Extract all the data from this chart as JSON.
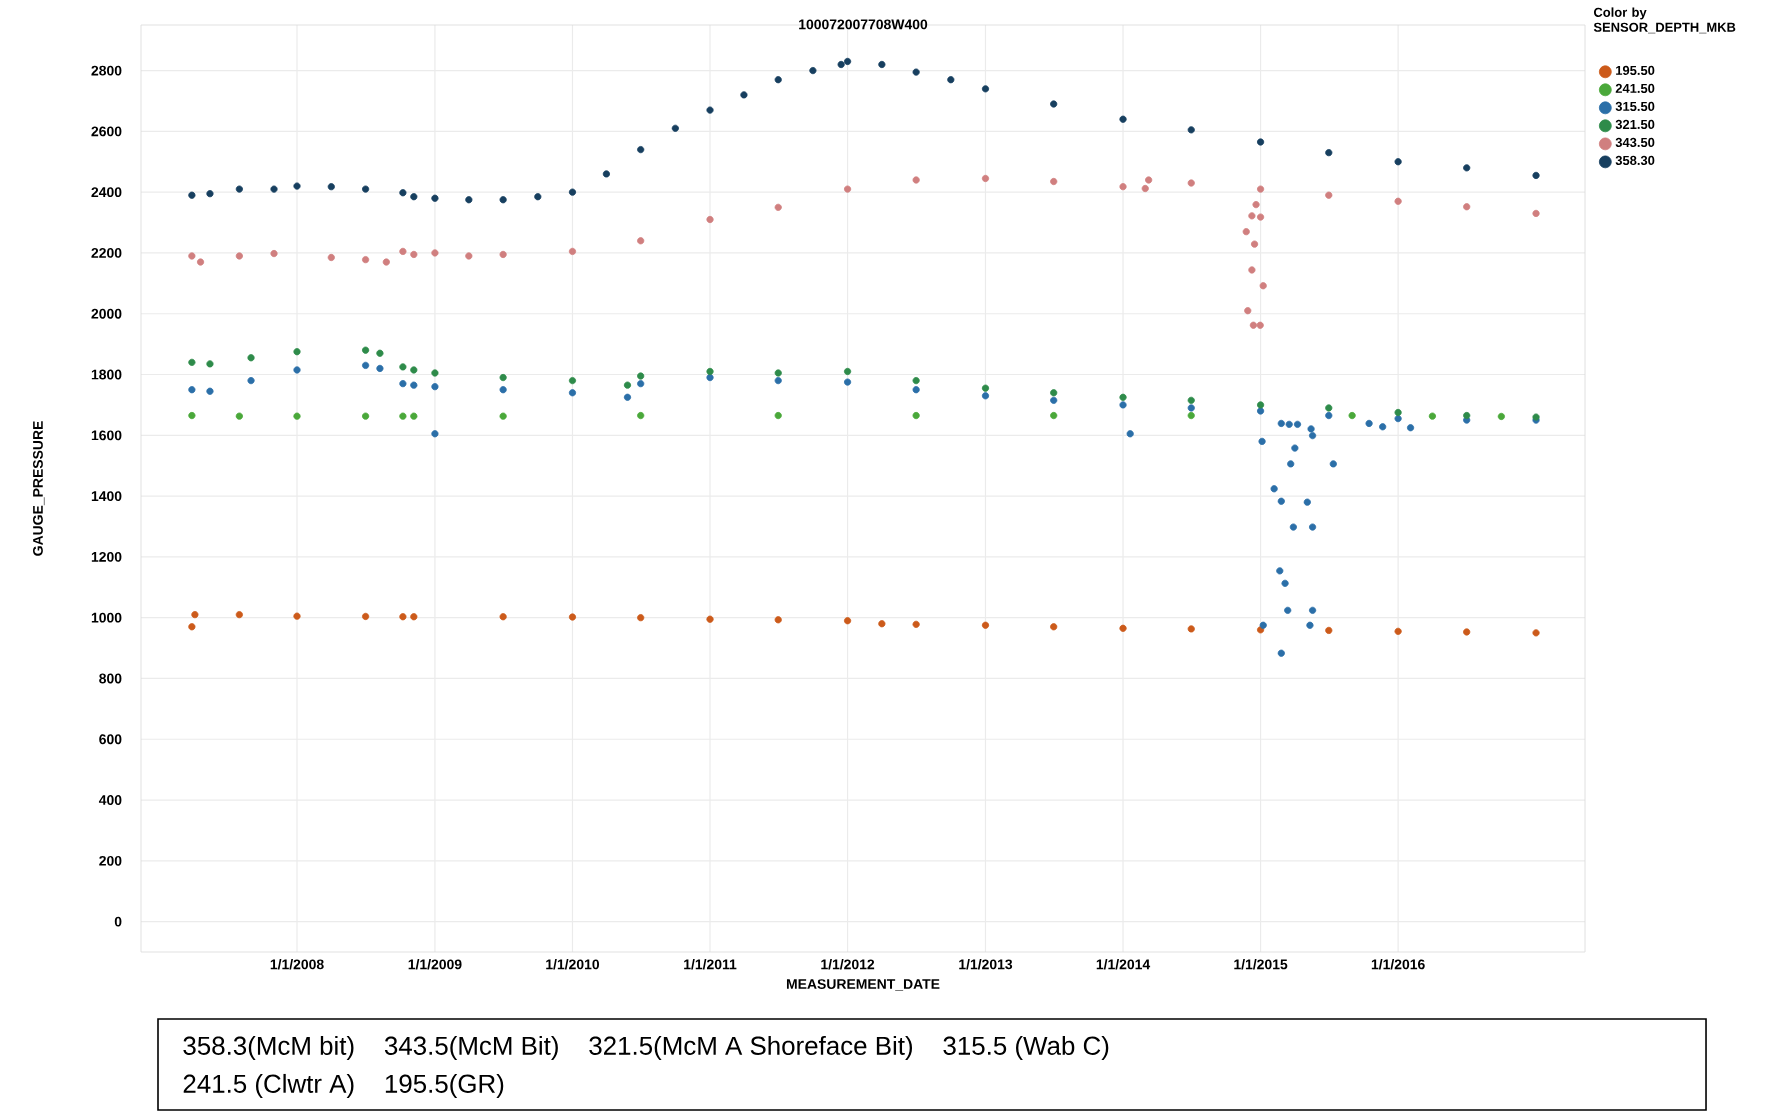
{
  "chart_data": {
    "type": "scatter",
    "title": "100072007708W400",
    "xlabel": "MEASUREMENT_DATE",
    "ylabel": "GAUGE_PRESSURE",
    "legend_title": "Color by SENSOR_DEPTH_MKB",
    "legend": "right",
    "grid": true,
    "xlim": [
      "2006-11-13",
      "2017-05-11"
    ],
    "ylim": [
      -100,
      2950
    ],
    "xticks": [
      {
        "value": "2008-01-01",
        "label": "1/1/2008"
      },
      {
        "value": "2009-01-01",
        "label": "1/1/2009"
      },
      {
        "value": "2010-01-01",
        "label": "1/1/2010"
      },
      {
        "value": "2011-01-01",
        "label": "1/1/2011"
      },
      {
        "value": "2012-01-01",
        "label": "1/1/2012"
      },
      {
        "value": "2013-01-01",
        "label": "1/1/2013"
      },
      {
        "value": "2014-01-01",
        "label": "1/1/2014"
      },
      {
        "value": "2015-01-01",
        "label": "1/1/2015"
      },
      {
        "value": "2016-01-01",
        "label": "1/1/2016"
      }
    ],
    "yticks": [
      0,
      200,
      400,
      600,
      800,
      1000,
      1200,
      1400,
      1600,
      1800,
      2000,
      2200,
      2400,
      2600,
      2800
    ],
    "annotations": [
      "358.3(McM bit)",
      "343.5(McM Bit)",
      "321.5(McM A Shoreface Bit)",
      "315.5 (Wab C)",
      "241.5 (Clwtr A)",
      "195.5(GR)"
    ],
    "series": [
      {
        "name": "195.50",
        "color": "#cc5a1a",
        "x": [
          "2007-03-28",
          "2007-04-05",
          "2007-08-01",
          "2008-01-01",
          "2008-07-01",
          "2008-10-08",
          "2008-11-06",
          "2009-07-01",
          "2010-01-01",
          "2010-07-01",
          "2011-01-01",
          "2011-07-01",
          "2012-01-01",
          "2012-04-01",
          "2012-07-01",
          "2013-01-01",
          "2013-07-01",
          "2014-01-01",
          "2014-07-01",
          "2015-01-01",
          "2015-07-01",
          "2016-01-01",
          "2016-07-01",
          "2017-01-01"
        ],
        "values": [
          970,
          1010,
          1010,
          1005,
          1004,
          1003,
          1003,
          1003,
          1002,
          1000,
          995,
          993,
          990,
          980,
          978,
          975,
          970,
          965,
          963,
          960,
          958,
          955,
          953,
          950
        ]
      },
      {
        "name": "241.50",
        "color": "#4aa83a",
        "x": [
          "2007-03-28",
          "2007-08-01",
          "2008-01-01",
          "2008-07-01",
          "2008-10-08",
          "2008-11-06",
          "2009-07-01",
          "2010-07-01",
          "2011-07-01",
          "2012-07-01",
          "2013-07-01",
          "2014-07-01",
          "2015-09-01",
          "2016-04-01",
          "2016-10-01"
        ],
        "values": [
          1665,
          1663,
          1663,
          1663,
          1663,
          1663,
          1663,
          1665,
          1665,
          1665,
          1665,
          1665,
          1665,
          1663,
          1662
        ]
      },
      {
        "name": "315.50",
        "color": "#2b6fa8",
        "x": [
          "2007-03-28",
          "2007-05-15",
          "2007-09-01",
          "2008-01-01",
          "2008-07-01",
          "2008-08-08",
          "2008-10-08",
          "2008-11-06",
          "2009-01-01",
          "2009-07-01",
          "2010-01-01",
          "2010-05-27",
          "2010-07-01",
          "2011-01-01",
          "2011-07-01",
          "2012-01-01",
          "2012-07-01",
          "2013-01-01",
          "2013-07-01",
          "2014-01-01",
          "2014-07-01",
          "2015-01-01",
          "2015-07-01",
          "2016-01-01",
          "2016-07-01",
          "2017-01-01",
          "2009-01-01",
          "2014-01-20",
          "2015-01-05",
          "2015-02-25",
          "2015-03-18",
          "2015-04-09",
          "2015-05-15",
          "2015-05-19",
          "2015-04-02",
          "2015-03-22",
          "2015-07-13",
          "2015-02-06",
          "2015-02-25",
          "2015-05-05",
          "2015-03-29",
          "2015-05-19",
          "2015-02-21",
          "2015-03-07",
          "2015-03-14",
          "2015-05-19",
          "2015-01-08",
          "2015-05-12",
          "2015-02-25",
          "2015-10-16",
          "2015-11-21",
          "2016-02-03"
        ],
        "values": [
          1750,
          1745,
          1780,
          1815,
          1830,
          1820,
          1770,
          1765,
          1760,
          1750,
          1740,
          1725,
          1770,
          1790,
          1780,
          1775,
          1750,
          1730,
          1715,
          1700,
          1690,
          1680,
          1665,
          1655,
          1650,
          1650,
          1605,
          1605,
          1580,
          1639,
          1636,
          1636,
          1621,
          1599,
          1558,
          1506,
          1506,
          1424,
          1383,
          1380,
          1298,
          1298,
          1154,
          1113,
          1024,
          1024,
          975,
          975,
          883,
          1639,
          1628,
          1625
        ]
      },
      {
        "name": "321.50",
        "color": "#2e8b4a",
        "x": [
          "2007-03-28",
          "2007-05-15",
          "2007-09-01",
          "2008-01-01",
          "2008-07-01",
          "2008-08-08",
          "2008-10-08",
          "2008-11-06",
          "2009-01-01",
          "2009-07-01",
          "2010-01-01",
          "2010-05-27",
          "2010-07-01",
          "2011-01-01",
          "2011-07-01",
          "2012-01-01",
          "2012-07-01",
          "2013-01-01",
          "2013-07-01",
          "2014-01-01",
          "2014-07-01",
          "2015-01-01",
          "2015-07-01",
          "2016-01-01",
          "2016-07-01",
          "2017-01-01"
        ],
        "values": [
          1840,
          1835,
          1855,
          1875,
          1880,
          1870,
          1825,
          1815,
          1805,
          1790,
          1780,
          1765,
          1795,
          1810,
          1805,
          1810,
          1780,
          1755,
          1740,
          1725,
          1715,
          1700,
          1690,
          1675,
          1665,
          1660
        ]
      },
      {
        "name": "343.50",
        "color": "#d07f7f",
        "x": [
          "2007-03-28",
          "2007-04-20",
          "2007-08-01",
          "2007-11-01",
          "2008-04-01",
          "2008-07-01",
          "2008-08-25",
          "2008-10-08",
          "2008-11-06",
          "2009-01-01",
          "2009-04-01",
          "2009-07-01",
          "2010-01-01",
          "2010-07-01",
          "2011-01-01",
          "2011-07-01",
          "2012-01-01",
          "2012-07-01",
          "2013-01-01",
          "2013-07-01",
          "2014-01-01",
          "2014-03-01",
          "2014-03-10",
          "2014-07-01",
          "2015-01-01",
          "2015-07-01",
          "2016-01-01",
          "2016-07-01",
          "2017-01-01",
          "2014-12-20",
          "2014-12-09",
          "2015-01-01",
          "2014-11-24",
          "2014-12-16",
          "2014-12-09",
          "2015-01-08",
          "2014-11-28",
          "2014-12-13",
          "2014-12-31"
        ],
        "values": [
          2190,
          2170,
          2190,
          2198,
          2185,
          2178,
          2170,
          2205,
          2195,
          2200,
          2190,
          2195,
          2205,
          2240,
          2310,
          2350,
          2410,
          2440,
          2445,
          2435,
          2418,
          2412,
          2440,
          2430,
          2410,
          2390,
          2370,
          2352,
          2330,
          2359,
          2322,
          2318,
          2270,
          2229,
          2144,
          2092,
          2010,
          1962,
          1962
        ]
      },
      {
        "name": "358.30",
        "color": "#173f5f",
        "x": [
          "2007-03-28",
          "2007-05-15",
          "2007-08-01",
          "2007-11-01",
          "2008-01-01",
          "2008-04-01",
          "2008-07-01",
          "2008-10-08",
          "2008-11-06",
          "2009-01-01",
          "2009-04-01",
          "2009-07-01",
          "2009-10-01",
          "2010-01-01",
          "2010-04-01",
          "2010-07-01",
          "2010-10-01",
          "2011-01-01",
          "2011-04-01",
          "2011-07-01",
          "2011-10-01",
          "2011-12-15",
          "2012-01-01",
          "2012-04-01",
          "2012-07-01",
          "2012-10-01",
          "2013-01-01",
          "2013-07-01",
          "2014-01-01",
          "2014-07-01",
          "2015-01-01",
          "2015-07-01",
          "2016-01-01",
          "2016-07-01",
          "2017-01-01"
        ],
        "values": [
          2390,
          2395,
          2410,
          2410,
          2420,
          2418,
          2410,
          2398,
          2385,
          2380,
          2375,
          2375,
          2385,
          2400,
          2460,
          2540,
          2610,
          2670,
          2720,
          2770,
          2800,
          2820,
          2830,
          2820,
          2795,
          2770,
          2740,
          2690,
          2640,
          2605,
          2565,
          2530,
          2500,
          2480,
          2455
        ]
      }
    ]
  }
}
